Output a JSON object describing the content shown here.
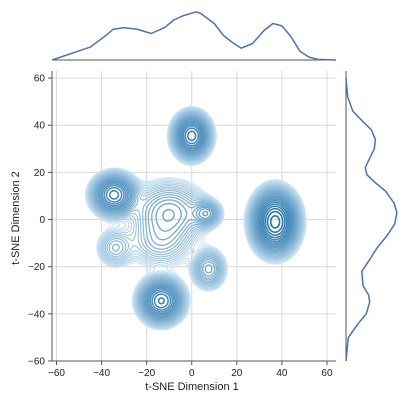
{
  "chart_data": {
    "type": "jointplot-kde",
    "xlabel": "t-SNE Dimension 1",
    "ylabel": "t-SNE Dimension 2",
    "xlim": [
      -62,
      64
    ],
    "ylim": [
      -60,
      63
    ],
    "xticks": [
      -60,
      -40,
      -20,
      0,
      20,
      40,
      60
    ],
    "yticks": [
      -60,
      -40,
      -20,
      0,
      20,
      40,
      60
    ],
    "grid": true,
    "colormap": "Blues",
    "clusters": [
      {
        "x": 0,
        "y": 35.5,
        "sx": 4.2,
        "sy": 4.8,
        "w": 1.0
      },
      {
        "x": 37,
        "y": -1,
        "sx": 5.0,
        "sy": 6.5,
        "w": 1.55
      },
      {
        "x": -34.5,
        "y": 10.5,
        "sx": 5.0,
        "sy": 4.5,
        "w": 0.85
      },
      {
        "x": -13.5,
        "y": -34.5,
        "sx": 5.0,
        "sy": 4.8,
        "w": 0.95
      },
      {
        "x": -10,
        "y": 3,
        "sx": 9,
        "sy": 7,
        "w": 0.32
      },
      {
        "x": 6.5,
        "y": 2.5,
        "sx": 3.5,
        "sy": 3.0,
        "w": 0.33
      },
      {
        "x": 7.5,
        "y": -21,
        "sx": 4.0,
        "sy": 4.5,
        "w": 0.3
      },
      {
        "x": -34,
        "y": -12,
        "sx": 4.5,
        "sy": 4.5,
        "w": 0.18
      },
      {
        "x": -14,
        "y": -10,
        "sx": 8,
        "sy": 6,
        "w": 0.17
      }
    ],
    "top_marginal": {
      "x": [
        -62,
        -45,
        -38,
        -35,
        -30,
        -24,
        -18,
        -12,
        -8,
        -4,
        2,
        4,
        10,
        14,
        18,
        22,
        27,
        32,
        36,
        40,
        44,
        48,
        52,
        56,
        64
      ],
      "density": [
        0.0,
        0.22,
        0.42,
        0.52,
        0.55,
        0.52,
        0.45,
        0.55,
        0.68,
        0.75,
        0.82,
        0.79,
        0.62,
        0.42,
        0.3,
        0.2,
        0.28,
        0.5,
        0.62,
        0.58,
        0.4,
        0.15,
        0.05,
        0.01,
        0.0
      ]
    },
    "right_marginal": {
      "y": [
        -60,
        -50,
        -44,
        -40,
        -35,
        -32,
        -28,
        -22,
        -17,
        -12,
        -7,
        -2,
        3,
        7,
        12,
        16,
        19,
        22,
        26,
        30,
        34,
        38,
        42,
        46,
        52,
        60
      ],
      "density": [
        0.0,
        0.04,
        0.22,
        0.36,
        0.42,
        0.4,
        0.3,
        0.28,
        0.42,
        0.55,
        0.72,
        0.86,
        0.9,
        0.85,
        0.7,
        0.5,
        0.37,
        0.34,
        0.42,
        0.5,
        0.52,
        0.45,
        0.28,
        0.12,
        0.03,
        0.0
      ]
    }
  }
}
